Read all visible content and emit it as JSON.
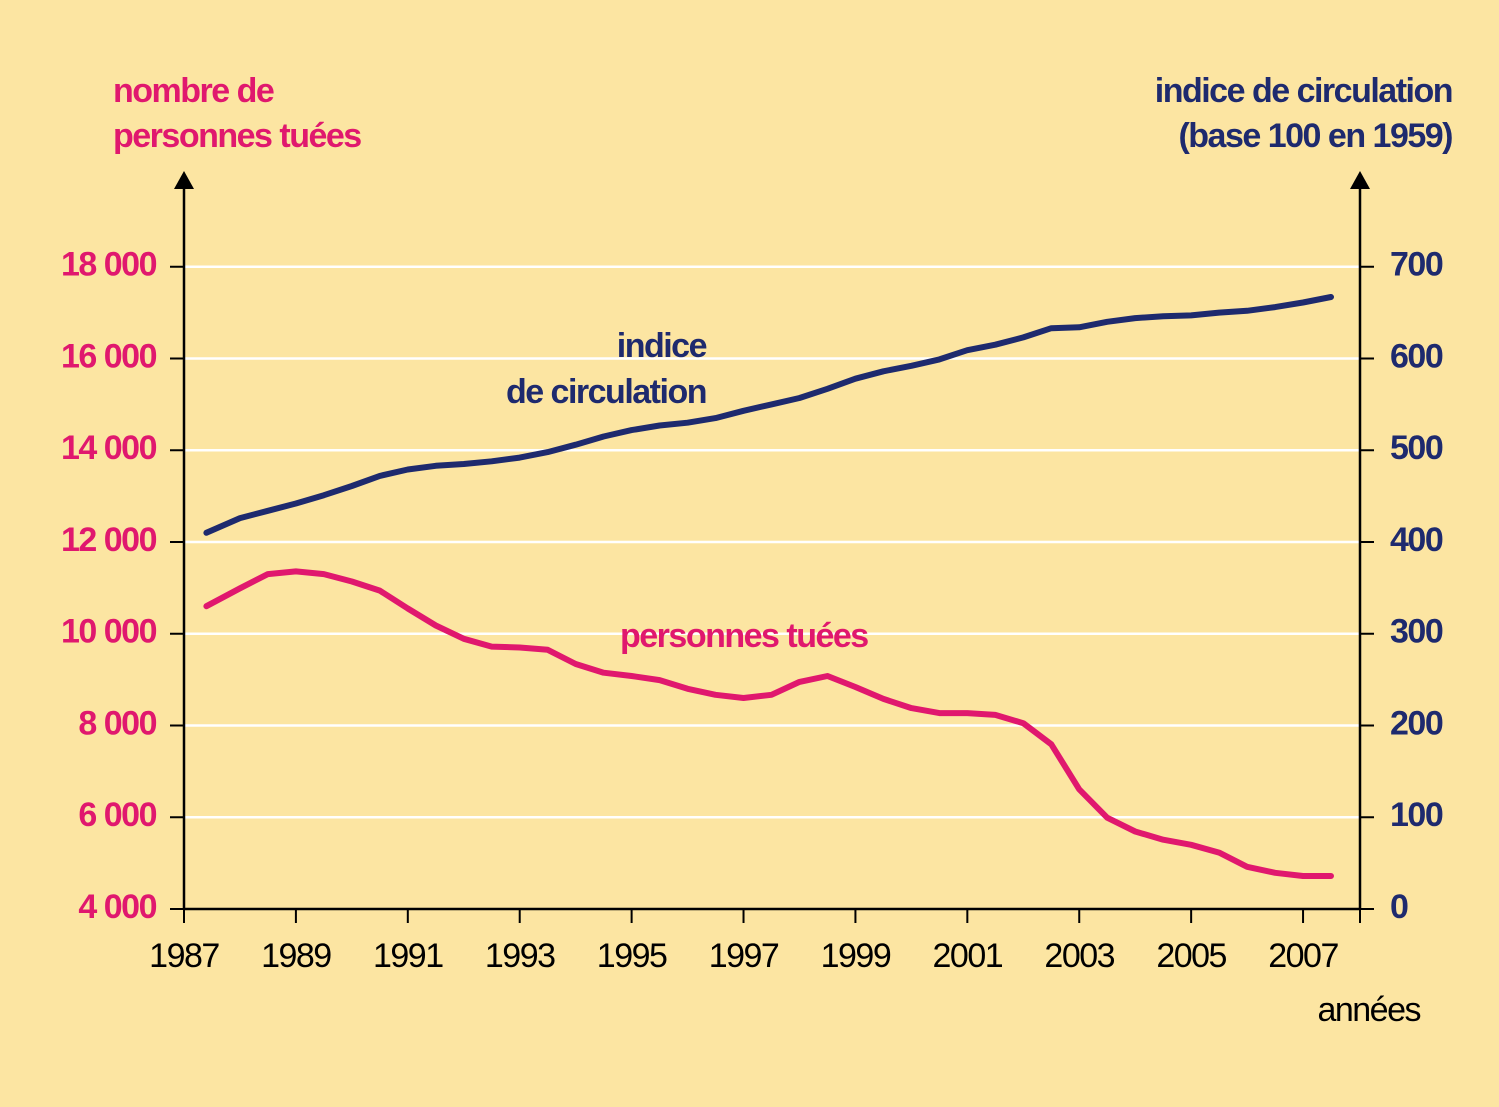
{
  "chart_data": {
    "type": "line",
    "y_label": [
      "nombre de",
      "personnes tuées"
    ],
    "y2_label": [
      "indice de circulation",
      "(base 100 en 1959)"
    ],
    "x_label": "années",
    "x": [
      1987.4,
      1988,
      1988.5,
      1989,
      1989.5,
      1990,
      1990.5,
      1991,
      1991.5,
      1992,
      1992.5,
      1993,
      1993.5,
      1994,
      1994.5,
      1995,
      1995.5,
      1996,
      1996.5,
      1997,
      1997.5,
      1998,
      1998.5,
      1999,
      1999.5,
      2000,
      2000.5,
      2001,
      2001.5,
      2002,
      2002.5,
      2003,
      2003.5,
      2004,
      2004.5,
      2005,
      2005.5,
      2006,
      2006.5,
      2007,
      2007.5
    ],
    "series": [
      {
        "label": [
          "indice",
          "de circulation"
        ],
        "color": "#1e2a6e",
        "axis": "y2",
        "values": [
          410,
          426,
          434,
          442,
          451,
          461,
          472,
          479,
          483,
          485,
          488,
          492,
          498,
          506,
          515,
          522,
          527,
          530,
          535,
          543,
          550,
          557,
          567,
          578,
          586,
          592,
          599,
          609,
          615,
          623,
          633,
          634,
          640,
          644,
          646,
          647,
          650,
          652,
          656,
          661,
          667
        ]
      },
      {
        "label": [
          "personnes tuées"
        ],
        "color": "#e0186e",
        "values": [
          10600,
          10990,
          11300,
          11360,
          11300,
          11140,
          10940,
          10550,
          10180,
          9890,
          9720,
          9700,
          9650,
          9340,
          9150,
          9080,
          8990,
          8800,
          8670,
          8600,
          8670,
          8950,
          9080,
          8840,
          8580,
          8380,
          8270,
          8270,
          8230,
          8050,
          7590,
          6610,
          5990,
          5690,
          5510,
          5400,
          5230,
          4920,
          4790,
          4720,
          4720
        ]
      }
    ],
    "xlim": [
      1987,
      2008
    ],
    "xticks": [
      1987,
      1989,
      1991,
      1993,
      1995,
      1997,
      1999,
      2001,
      2003,
      2005,
      2007
    ],
    "ylim": [
      4000,
      20000
    ],
    "yticks": [
      {
        "value": 4000,
        "label": "4 000"
      },
      {
        "value": 6000,
        "label": "6 000"
      },
      {
        "value": 8000,
        "label": "8 000"
      },
      {
        "value": 10000,
        "label": "10 000"
      },
      {
        "value": 12000,
        "label": "12 000"
      },
      {
        "value": 14000,
        "label": "14 000"
      },
      {
        "value": 16000,
        "label": "16 000"
      },
      {
        "value": 18000,
        "label": "18 000"
      }
    ],
    "y2lim": [
      0,
      800
    ],
    "y2ticks": [
      0,
      100,
      200,
      300,
      400,
      500,
      600,
      700
    ],
    "grid": true,
    "y_color": "#e0186e",
    "y2_color": "#1e2a6e"
  }
}
